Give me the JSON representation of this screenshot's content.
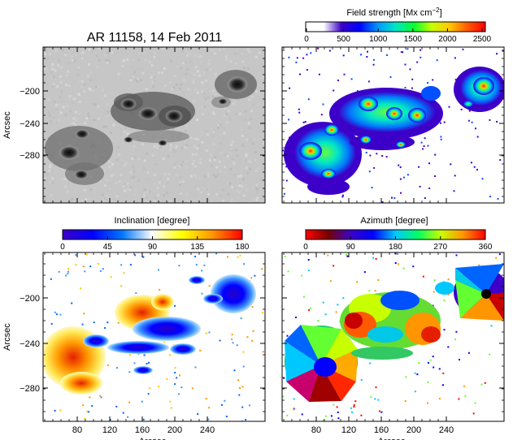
{
  "figure": {
    "title": "AR 11158, 14 Feb 2011",
    "axis_unit_label": "Arcsec",
    "x_ticks": [
      "80",
      "120",
      "160",
      "200",
      "240"
    ],
    "y_ticks": [
      "−200",
      "−240",
      "−280"
    ]
  },
  "panels": [
    {
      "id": "continuum",
      "quantity": "intensity (grayscale)",
      "colorbar": null
    },
    {
      "id": "field-strength",
      "colorbar": {
        "label": "Field strength [Mx cm",
        "label_sup": "−2",
        "label_end": "]",
        "ticks": [
          "0",
          "500",
          "1000",
          "1500",
          "2000",
          "2500"
        ],
        "colormap": [
          "#ffffff",
          "#ffffff",
          "#3a00c8",
          "#0000ff",
          "#0096ff",
          "#00e6c8",
          "#00ff32",
          "#c8ff00",
          "#ffc800",
          "#ff5a00",
          "#ff0000"
        ]
      }
    },
    {
      "id": "inclination",
      "colorbar": {
        "label": "Inclination [degree]",
        "ticks": [
          "0",
          "45",
          "90",
          "135",
          "180"
        ],
        "colormap": [
          "#3c00c8",
          "#0000ff",
          "#0078ff",
          "#ffffff",
          "#ffff00",
          "#ff9600",
          "#ff0000"
        ]
      }
    },
    {
      "id": "azimuth",
      "colorbar": {
        "label": "Azimuth [degree]",
        "ticks": [
          "0",
          "90",
          "180",
          "270",
          "360"
        ],
        "colormap": [
          "#ff0000",
          "#780000",
          "#3c00c8",
          "#0000ff",
          "#00c8ff",
          "#00ff64",
          "#c8ff00",
          "#ff9600",
          "#ff0000"
        ]
      }
    }
  ]
}
